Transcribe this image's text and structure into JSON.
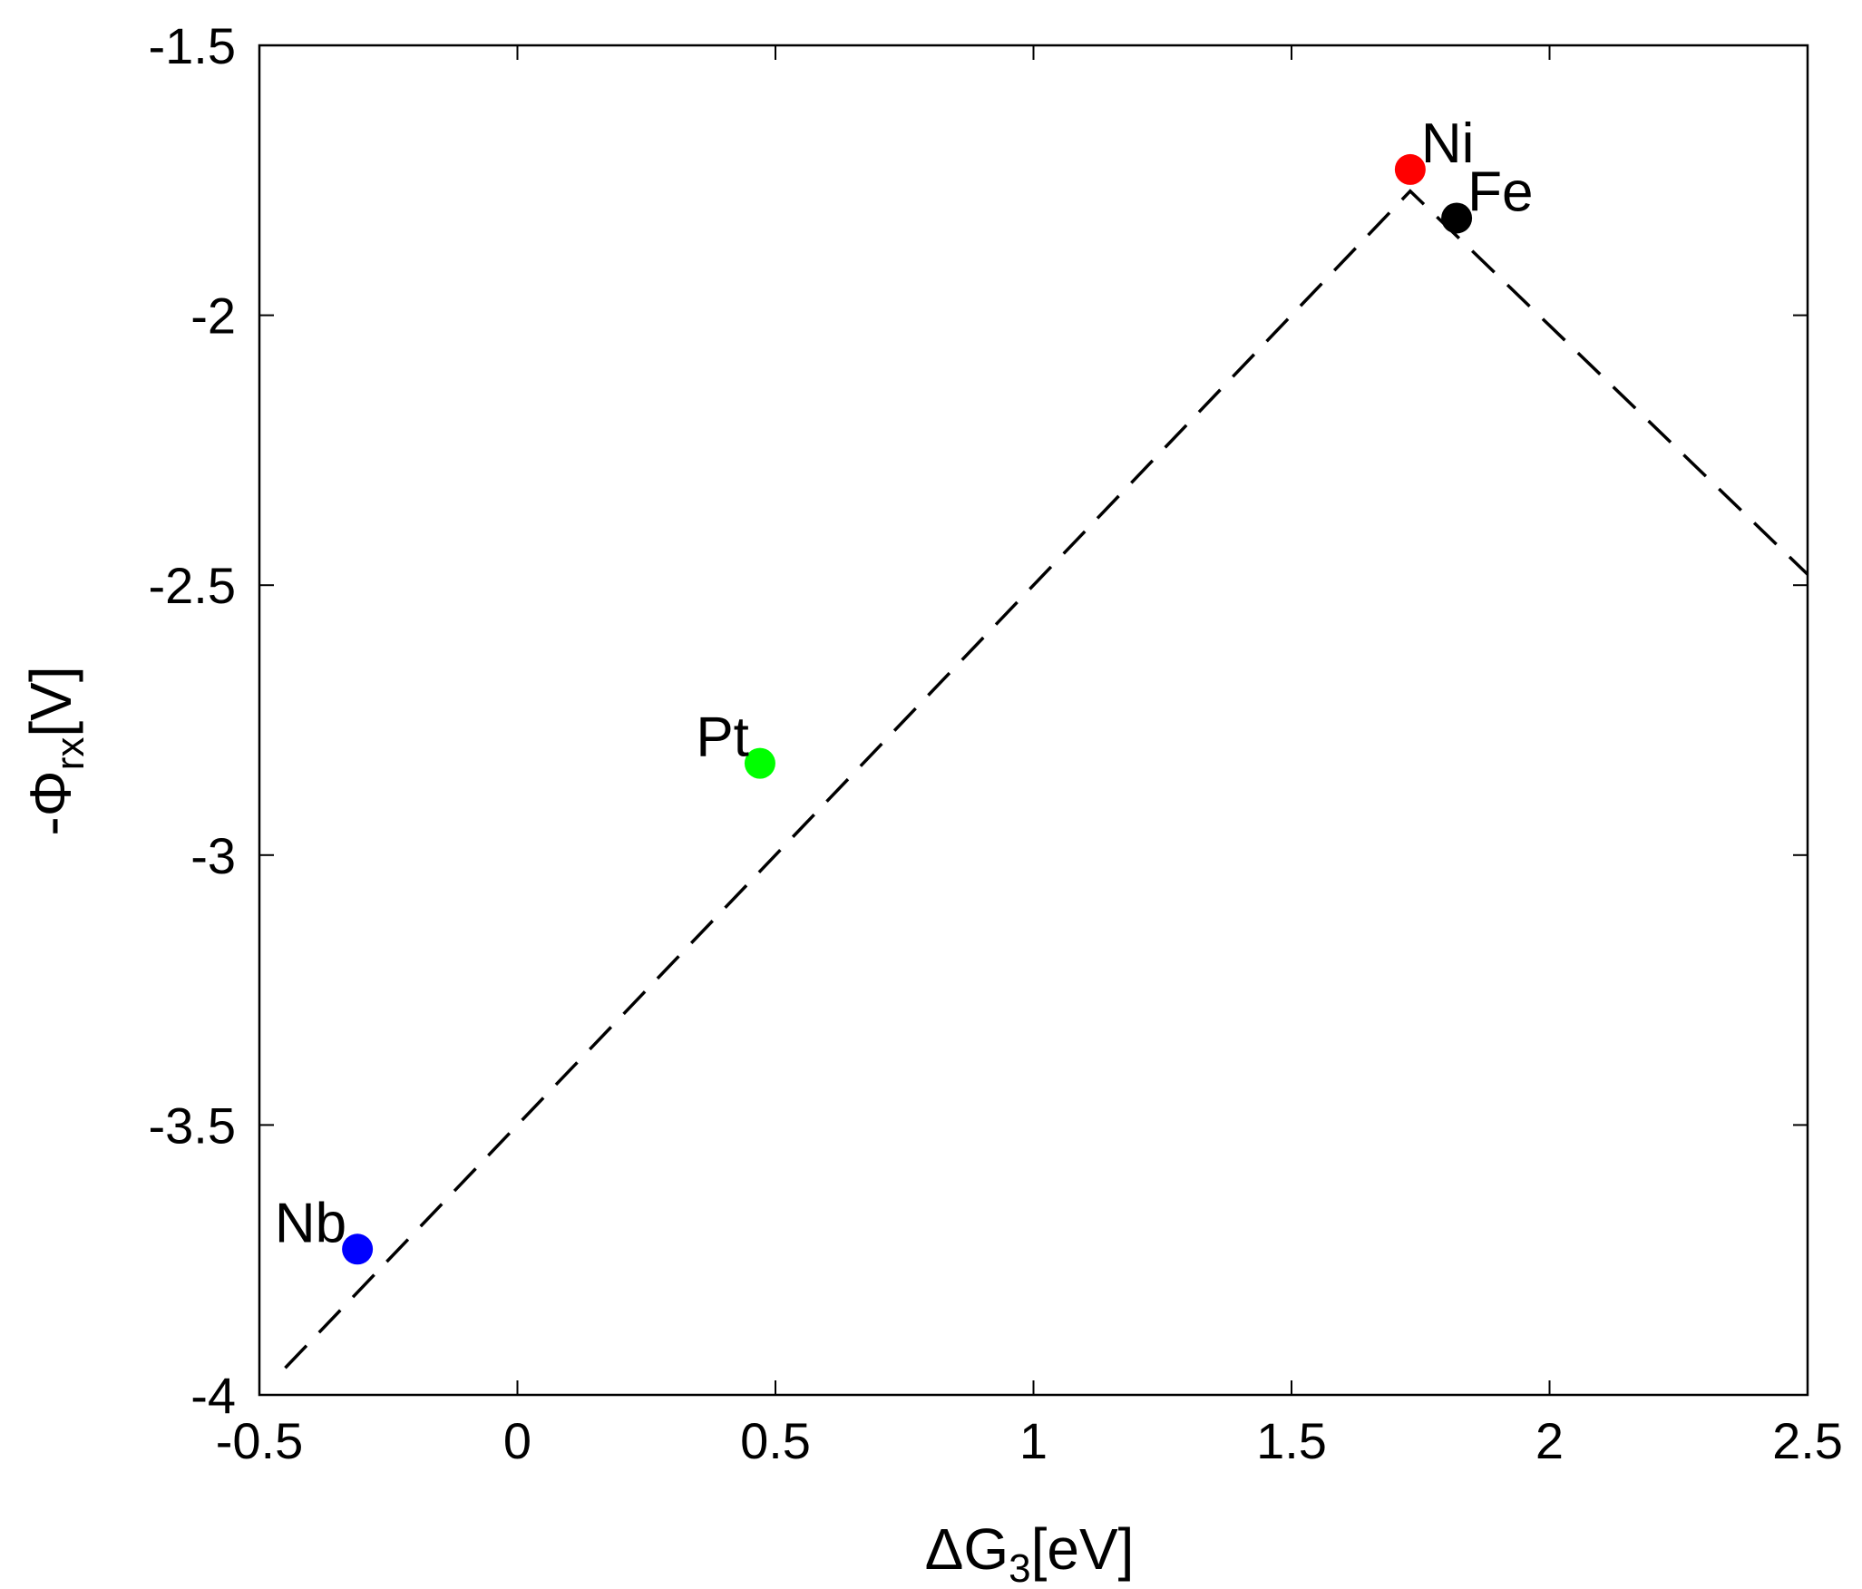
{
  "chart_data": {
    "type": "scatter",
    "title": "",
    "xlabel": {
      "main": "ΔG",
      "sub": "3",
      "suffix": "[eV]"
    },
    "ylabel": {
      "main": "-Φ",
      "sub": "rx",
      "suffix": "[V]"
    },
    "xlim": [
      -0.5,
      2.5
    ],
    "ylim": [
      -4,
      -1.5
    ],
    "xticks": [
      -0.5,
      0,
      0.5,
      1,
      1.5,
      2,
      2.5
    ],
    "xtick_labels": [
      "-0.5",
      "0",
      "0.5",
      "1",
      "1.5",
      "2",
      "2.5"
    ],
    "yticks": [
      -4,
      -3.5,
      -3,
      -2.5,
      -2,
      -1.5
    ],
    "ytick_labels": [
      "-4",
      "-3.5",
      "-3",
      "-2.5",
      "-2",
      "-1.5"
    ],
    "grid": false,
    "points": [
      {
        "label": "Nb",
        "x": -0.31,
        "y": -3.73,
        "color": "#0000ff",
        "label_side": "left-top"
      },
      {
        "label": "Pt",
        "x": 0.47,
        "y": -2.83,
        "color": "#00ff00",
        "label_side": "left-top"
      },
      {
        "label": "Ni",
        "x": 1.73,
        "y": -1.73,
        "color": "#ff0000",
        "label_side": "right-top"
      },
      {
        "label": "Fe",
        "x": 1.82,
        "y": -1.82,
        "color": "#000000",
        "label_side": "right-top"
      }
    ],
    "lines": [
      {
        "style": "dashed",
        "color": "#000000",
        "x": [
          -0.45,
          1.73,
          2.5
        ],
        "y": [
          -3.95,
          -1.77,
          -2.48
        ]
      }
    ]
  }
}
